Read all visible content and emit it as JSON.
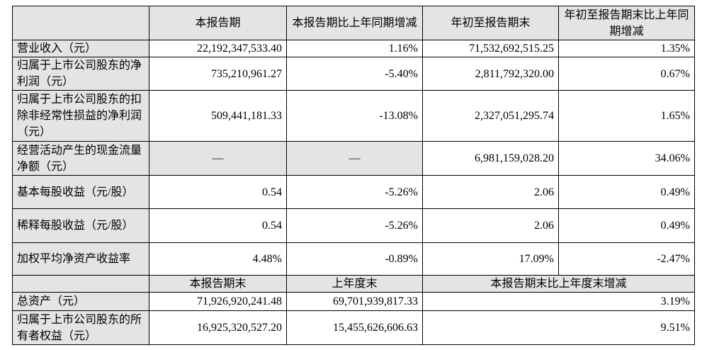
{
  "table": {
    "header": [
      "本报告期",
      "本报告期比上年同期增减",
      "年初至报告期末",
      "年初至报告期末比上年同期增减"
    ],
    "rows": [
      [
        "营业收入（元）",
        "22,192,347,533.40",
        "1.16%",
        "71,532,692,515.25",
        "1.35%"
      ],
      [
        "归属于上市公司股东的净利润（元）",
        "735,210,961.27",
        "-5.40%",
        "2,811,792,320.00",
        "0.67%"
      ],
      [
        "归属于上市公司股东的扣除非经常性损益的净利润（元）",
        "509,441,181.33",
        "-13.08%",
        "2,327,051,295.74",
        "1.65%"
      ],
      [
        "经营活动产生的现金流量净额（元）",
        "—",
        "—",
        "6,981,159,028.20",
        "34.06%"
      ],
      [
        "基本每股收益（元/股）",
        "0.54",
        "-5.26%",
        "2.06",
        "0.49%"
      ],
      [
        "稀释每股收益（元/股）",
        "0.54",
        "-5.26%",
        "2.06",
        "0.49%"
      ],
      [
        "加权平均净资产收益率",
        "4.48%",
        "-0.89%",
        "17.09%",
        "-2.47%"
      ]
    ],
    "header2": [
      "本报告期末",
      "上年度末",
      "本报告期末比上年度末增减"
    ],
    "rows2": [
      [
        "总资产（元）",
        "71,926,920,241.48",
        "69,701,939,817.33",
        "3.19%"
      ],
      [
        "归属于上市公司股东的所有者权益（元）",
        "16,925,320,527.20",
        "15,455,626,606.63",
        "9.51%"
      ]
    ]
  }
}
